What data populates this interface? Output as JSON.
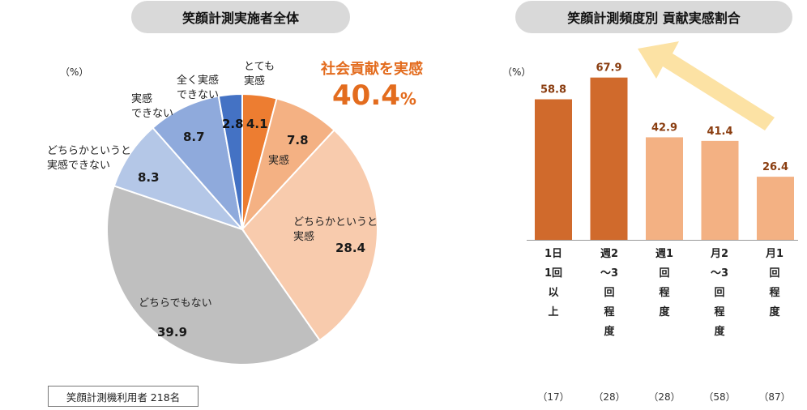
{
  "left_title": "笑顔計測実施者全体",
  "right_title": "笑顔計測頻度別 貢献実感割合",
  "unit_left": "（%）",
  "unit_right": "（%）",
  "highlight": {
    "label": "社会貢献を実感",
    "value": "40.4",
    "unit": "%"
  },
  "respondents": "笑顔計測機利用者 218名",
  "colors": {
    "accent": "#e36c1e",
    "arrow": "#fce2a4",
    "bar_high": "#d06a2c",
    "bar_low": "#f3b183"
  },
  "chart_data": [
    {
      "type": "pie",
      "title": "笑顔計測実施者全体",
      "slices": [
        {
          "label": "とても\n実感",
          "value": 4.1,
          "display": "4.1",
          "color": "#ed7d31"
        },
        {
          "label": "実感",
          "value": 7.8,
          "display": "7.8",
          "color": "#f4b183"
        },
        {
          "label": "どちらかというと\n実感",
          "value": 28.4,
          "display": "28.4",
          "color": "#f8cbad"
        },
        {
          "label": "どちらでもない",
          "value": 39.9,
          "display": "39.9",
          "color": "#bfbfbf"
        },
        {
          "label": "どちらかというと\n実感できない",
          "value": 8.3,
          "display": "8.3",
          "color": "#b4c7e7"
        },
        {
          "label": "実感\nできない",
          "value": 8.7,
          "display": "8.7",
          "color": "#8faadc"
        },
        {
          "label": "全く実感\nできない",
          "value": 2.8,
          "display": "2.8",
          "color": "#4472c4"
        }
      ]
    },
    {
      "type": "bar",
      "title": "笑顔計測頻度別 貢献実感割合",
      "categories": [
        "1日1回以上",
        "週2～3回程度",
        "週1回程度",
        "月2～3回程度",
        "月1回程度"
      ],
      "values": [
        58.8,
        67.9,
        42.9,
        41.4,
        26.4
      ],
      "value_labels": [
        "58.8",
        "67.9",
        "42.9",
        "41.4",
        "26.4"
      ],
      "counts": [
        "（17）",
        "（28）",
        "（28）",
        "（58）",
        "（87）"
      ],
      "highlighted": [
        true,
        true,
        false,
        false,
        false
      ],
      "ylim": [
        0,
        80
      ]
    }
  ]
}
